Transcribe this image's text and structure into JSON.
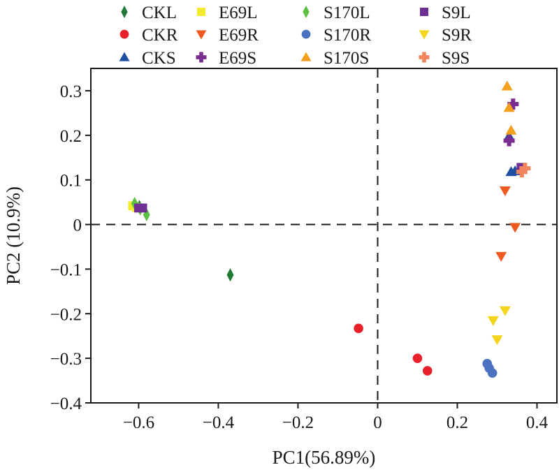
{
  "chart_data": {
    "type": "scatter",
    "title": "",
    "xlabel": "PC1(56.89%)",
    "ylabel": "PC2 (10.9%)",
    "xlim": [
      -0.72,
      0.45
    ],
    "ylim": [
      -0.4,
      0.35
    ],
    "xticks": [
      -0.6,
      -0.4,
      -0.2,
      0,
      0.2,
      0.4
    ],
    "xtick_labels": [
      "−0.6",
      "−0.4",
      "−0.2",
      "0",
      "0.2",
      "0.4"
    ],
    "yticks": [
      -0.4,
      -0.3,
      -0.2,
      -0.1,
      0,
      0.1,
      0.2,
      0.3
    ],
    "ytick_labels": [
      "−0.4",
      "−0.3",
      "−0.2",
      "−0.1",
      "0",
      "0.1",
      "0.2",
      "0.3"
    ],
    "grid": false,
    "reference_lines": {
      "x": 0,
      "y": 0,
      "style": "dashed"
    },
    "legend_position": "top",
    "series": [
      {
        "name": "CKL",
        "marker": "diamond",
        "color": "#1e7a35",
        "points": [
          [
            -0.612,
            0.043
          ],
          [
            -0.598,
            0.04
          ],
          [
            -0.37,
            -0.113
          ]
        ]
      },
      {
        "name": "CKR",
        "marker": "circle",
        "color": "#e8202a",
        "points": [
          [
            -0.048,
            -0.233
          ],
          [
            0.1,
            -0.3
          ],
          [
            0.125,
            -0.328
          ]
        ]
      },
      {
        "name": "CKS",
        "marker": "triangle-up",
        "color": "#1f4fa0",
        "points": [
          [
            0.33,
            0.198
          ],
          [
            0.335,
            0.118
          ],
          [
            0.345,
            0.12
          ]
        ]
      },
      {
        "name": "E69L",
        "marker": "square",
        "color": "#f2ea2a",
        "points": [
          [
            -0.615,
            0.042
          ],
          [
            -0.605,
            0.038
          ]
        ]
      },
      {
        "name": "E69R",
        "marker": "triangle-down",
        "color": "#ef5a21",
        "points": [
          [
            0.32,
            0.076
          ],
          [
            0.345,
            -0.006
          ],
          [
            0.31,
            -0.071
          ]
        ]
      },
      {
        "name": "E69S",
        "marker": "plus",
        "color": "#7b2c93",
        "points": [
          [
            0.34,
            0.27
          ],
          [
            0.33,
            0.188
          ]
        ]
      },
      {
        "name": "S170L",
        "marker": "diamond",
        "color": "#5bbf3f",
        "points": [
          [
            -0.61,
            0.047
          ],
          [
            -0.596,
            0.035
          ],
          [
            -0.58,
            0.022
          ]
        ]
      },
      {
        "name": "S170R",
        "marker": "circle",
        "color": "#4a72c0",
        "points": [
          [
            0.275,
            -0.312
          ],
          [
            0.28,
            -0.322
          ],
          [
            0.288,
            -0.333
          ]
        ]
      },
      {
        "name": "S170S",
        "marker": "triangle-up",
        "color": "#f3a01f",
        "points": [
          [
            0.325,
            0.31
          ],
          [
            0.33,
            0.262
          ],
          [
            0.335,
            0.211
          ]
        ]
      },
      {
        "name": "S9L",
        "marker": "square",
        "color": "#6e3095",
        "points": [
          [
            -0.6,
            0.037
          ],
          [
            -0.59,
            0.037
          ],
          [
            0.36,
            0.128
          ]
        ]
      },
      {
        "name": "S9R",
        "marker": "triangle-down",
        "color": "#f5d51c",
        "points": [
          [
            0.29,
            -0.215
          ],
          [
            0.3,
            -0.258
          ],
          [
            0.32,
            -0.193
          ]
        ]
      },
      {
        "name": "S9S",
        "marker": "plus",
        "color": "#f0855e",
        "points": [
          [
            0.362,
            0.118
          ],
          [
            0.37,
            0.126
          ]
        ]
      }
    ]
  }
}
